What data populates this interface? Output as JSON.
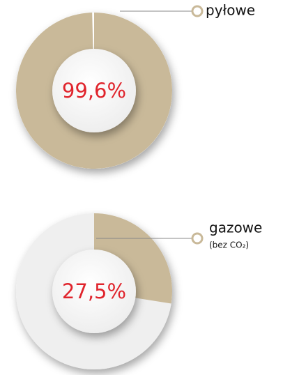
{
  "chart_data": [
    {
      "type": "donut",
      "label": "pyłowe",
      "values": [
        99.6
      ],
      "value_labels": [
        "99,6%"
      ],
      "color": "#c9b999",
      "track_color": "#ffffff",
      "label_color": "#e0242c"
    },
    {
      "type": "donut",
      "label": "gazowe",
      "sublabel": "(bez CO₂)",
      "values": [
        27.5
      ],
      "value_labels": [
        "27,5%"
      ],
      "color": "#c9b999",
      "track_color": "#efefef",
      "label_color": "#e0242c"
    }
  ]
}
